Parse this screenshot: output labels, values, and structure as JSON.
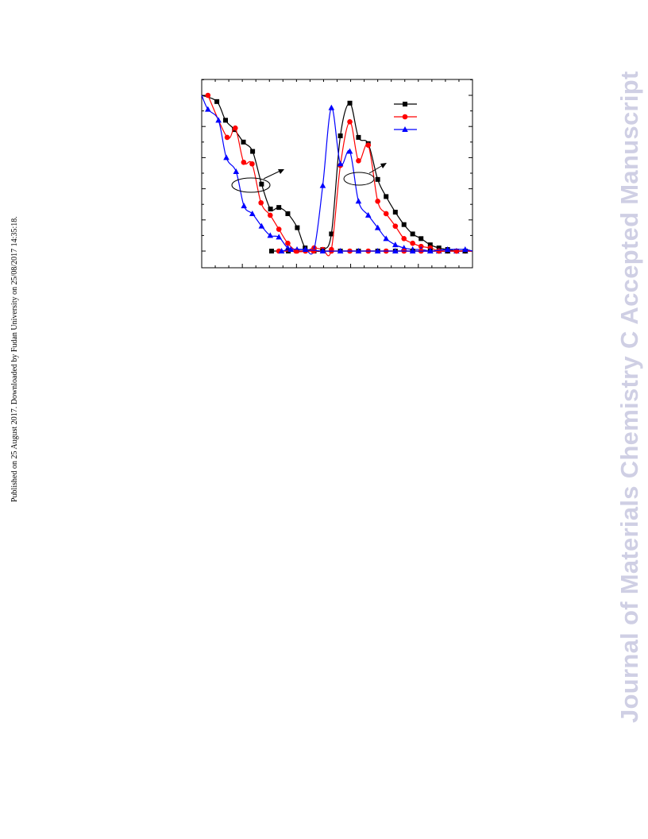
{
  "side_note": "Published on 25 August 2017. Downloaded by Fudan University on 25/08/2017 14:35:18.",
  "watermark": "Journal of Materials Chemistry C Accepted Manuscript",
  "colors": {
    "black": "#000000",
    "red": "#ff0000",
    "blue": "#0000ff",
    "watermark": "#cfcfe4"
  },
  "chart_data": {
    "type": "line",
    "title": "",
    "xlabel": "",
    "ylabel": "",
    "xlim": [
      0,
      100
    ],
    "ylim": [
      0,
      100
    ],
    "grid": false,
    "legend": {
      "position": "top-right",
      "entries": [
        "",
        "",
        ""
      ]
    },
    "annotations": [
      "ellipse-arrow-left-curves",
      "ellipse-arrow-right-curves"
    ],
    "series": [
      {
        "color": "#000000",
        "marker": "square",
        "x": [
          0,
          5.6,
          8.8,
          12.1,
          15.4,
          18.8,
          22.1,
          25.4,
          28.5,
          31.8,
          35.3,
          38.2,
          41.5,
          44.7,
          47.9,
          51.2,
          54.7,
          57.9,
          61.5,
          65.0,
          68.1,
          71.5,
          74.7,
          77.9,
          81.0,
          84.4,
          87.6,
          90.8,
          94.1,
          97.3,
          100
        ],
        "y": [
          100,
          96,
          84,
          78,
          70,
          64,
          43,
          27,
          28,
          24,
          15,
          2,
          0,
          1,
          11,
          74,
          95,
          73,
          69,
          46,
          35,
          25,
          17,
          11,
          8,
          4,
          2,
          1,
          0,
          0,
          0
        ]
      },
      {
        "color": "#ff0000",
        "marker": "circle",
        "x": [
          2.3,
          9.4,
          12.4,
          15.5,
          18.6,
          21.9,
          25.3,
          28.5,
          31.8,
          35.2,
          38.3,
          41.5,
          44.7,
          47.9,
          51.2,
          54.7,
          57.9,
          61.5,
          65.0,
          68.1,
          71.5,
          74.7,
          77.9,
          81.0,
          84.4,
          87.6,
          90.8,
          94.1,
          97.3,
          100
        ],
        "y": [
          100,
          73,
          79,
          57,
          56,
          31,
          23,
          14,
          5,
          0,
          0,
          2,
          1,
          1,
          55,
          83,
          58,
          68,
          32,
          24,
          16,
          8,
          5,
          3,
          2,
          0,
          0,
          0,
          0,
          0
        ]
      },
      {
        "color": "#0000ff",
        "marker": "triangle",
        "x": [
          0,
          2.3,
          6.2,
          9.1,
          12.7,
          15.6,
          18.7,
          22.1,
          25.3,
          28.5,
          31.8,
          35.2,
          38.3,
          41.5,
          44.7,
          47.9,
          51.2,
          54.7,
          57.9,
          61.5,
          65.0,
          68.1,
          71.5,
          74.7,
          77.9,
          81.0,
          84.4,
          87.6,
          90.8,
          94.1,
          97.3,
          100
        ],
        "y": [
          100,
          91,
          84,
          60,
          51,
          29,
          24,
          16,
          10,
          9,
          2,
          1,
          1,
          1,
          42,
          92,
          56,
          64,
          32,
          23,
          15,
          8,
          4,
          2,
          1,
          1,
          0,
          0,
          0,
          0,
          0,
          0
        ]
      },
      {
        "color": "#000000",
        "marker": "square",
        "x": [
          25.8,
          32.0,
          44.7,
          51.2,
          57.9,
          65.0,
          71.5,
          77.9,
          84.4,
          90.8,
          97.3,
          100
        ],
        "y": [
          0,
          0,
          0,
          0,
          0,
          0,
          0,
          0,
          0,
          0,
          0,
          0
        ]
      },
      {
        "color": "#ff0000",
        "marker": "circle",
        "x": [
          28.5,
          34.8,
          41.3,
          47.9,
          54.7,
          61.5,
          68.1,
          74.7,
          81.0,
          87.6,
          94.1,
          100
        ],
        "y": [
          0,
          0,
          0,
          0,
          0,
          0,
          0,
          0,
          0,
          0,
          0,
          0
        ]
      },
      {
        "color": "#0000ff",
        "marker": "triangle",
        "x": [
          29.5,
          32.9,
          38.3,
          44.7,
          51.2,
          57.9,
          65.0,
          71.5,
          77.9,
          84.4,
          90.8,
          97.3,
          100
        ],
        "y": [
          0,
          1,
          1,
          0,
          0,
          0,
          0,
          0,
          0,
          0,
          1,
          1,
          0
        ]
      }
    ]
  }
}
